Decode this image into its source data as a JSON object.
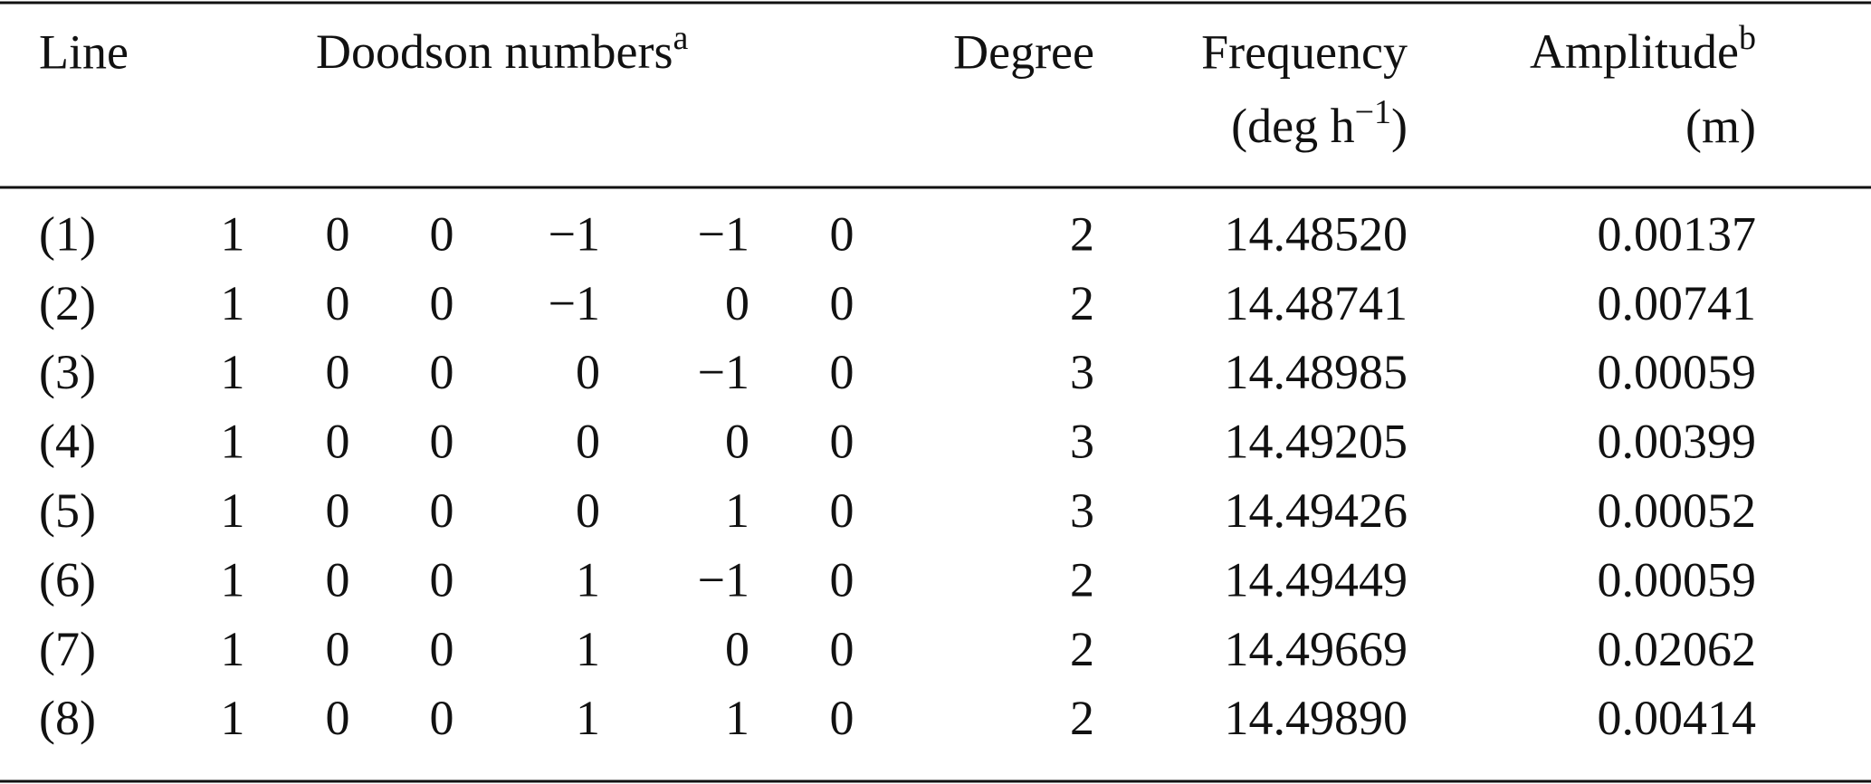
{
  "table": {
    "header": {
      "line": "Line",
      "doodson": "Doodson numbers",
      "doodson_note": "a",
      "degree": "Degree",
      "frequency": "Frequency",
      "frequency_unit": [
        "(deg h",
        "−1",
        ")"
      ],
      "amplitude": "Amplitude",
      "amplitude_note": "b",
      "amplitude_unit": "(m)"
    },
    "rows": [
      [
        "(1)",
        "1",
        "0",
        "0",
        "−1",
        "−1",
        "0",
        "2",
        "14.48520",
        "0.00137"
      ],
      [
        "(2)",
        "1",
        "0",
        "0",
        "−1",
        "0",
        "0",
        "2",
        "14.48741",
        "0.00741"
      ],
      [
        "(3)",
        "1",
        "0",
        "0",
        "0",
        "−1",
        "0",
        "3",
        "14.48985",
        "0.00059"
      ],
      [
        "(4)",
        "1",
        "0",
        "0",
        "0",
        "0",
        "0",
        "3",
        "14.49205",
        "0.00399"
      ],
      [
        "(5)",
        "1",
        "0",
        "0",
        "0",
        "1",
        "0",
        "3",
        "14.49426",
        "0.00052"
      ],
      [
        "(6)",
        "1",
        "0",
        "0",
        "1",
        "−1",
        "0",
        "2",
        "14.49449",
        "0.00059"
      ],
      [
        "(7)",
        "1",
        "0",
        "0",
        "1",
        "0",
        "0",
        "2",
        "14.49669",
        "0.02062"
      ],
      [
        "(8)",
        "1",
        "0",
        "0",
        "1",
        "1",
        "0",
        "2",
        "14.49890",
        "0.00414"
      ]
    ]
  }
}
